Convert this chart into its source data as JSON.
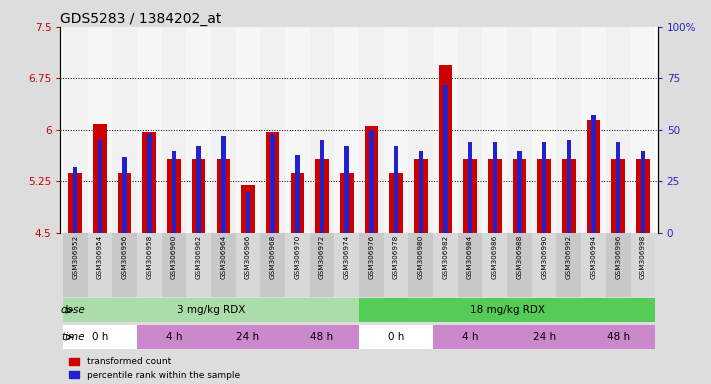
{
  "title": "GDS5283 / 1384202_at",
  "samples": [
    "GSM306952",
    "GSM306954",
    "GSM306956",
    "GSM306958",
    "GSM306960",
    "GSM306962",
    "GSM306964",
    "GSM306966",
    "GSM306968",
    "GSM306970",
    "GSM306972",
    "GSM306974",
    "GSM306976",
    "GSM306978",
    "GSM306980",
    "GSM306982",
    "GSM306984",
    "GSM306986",
    "GSM306988",
    "GSM306990",
    "GSM306992",
    "GSM306994",
    "GSM306996",
    "GSM306998"
  ],
  "red_values": [
    5.38,
    6.08,
    5.38,
    5.97,
    5.58,
    5.58,
    5.58,
    5.2,
    5.97,
    5.38,
    5.58,
    5.38,
    6.05,
    5.38,
    5.58,
    6.95,
    5.58,
    5.58,
    5.58,
    5.58,
    5.58,
    6.15,
    5.58,
    5.58
  ],
  "blue_values_pct": [
    32,
    45,
    37,
    48,
    40,
    42,
    47,
    20,
    48,
    38,
    45,
    42,
    50,
    42,
    40,
    72,
    44,
    44,
    40,
    44,
    45,
    57,
    44,
    40
  ],
  "ylim_left": [
    4.5,
    7.5
  ],
  "ylim_right": [
    0,
    100
  ],
  "yticks_left": [
    4.5,
    5.25,
    6.0,
    6.75,
    7.5
  ],
  "yticks_right": [
    0,
    25,
    50,
    75,
    100
  ],
  "ytick_labels_left": [
    "4.5",
    "5.25",
    "6",
    "6.75",
    "7.5"
  ],
  "ytick_labels_right": [
    "0",
    "25",
    "50",
    "75",
    "100%"
  ],
  "hlines": [
    5.25,
    6.0,
    6.75
  ],
  "bar_color_red": "#cc0000",
  "bar_color_blue": "#2222cc",
  "dose_labels": [
    {
      "label": "3 mg/kg RDX",
      "start": 0,
      "end": 12,
      "color": "#aaddaa"
    },
    {
      "label": "18 mg/kg RDX",
      "start": 12,
      "end": 24,
      "color": "#55cc55"
    }
  ],
  "time_labels": [
    {
      "label": "0 h",
      "start": 0,
      "end": 3,
      "color": "#ffffff"
    },
    {
      "label": "4 h",
      "start": 3,
      "end": 6,
      "color": "#cc88cc"
    },
    {
      "label": "24 h",
      "start": 6,
      "end": 9,
      "color": "#cc88cc"
    },
    {
      "label": "48 h",
      "start": 9,
      "end": 12,
      "color": "#cc88cc"
    },
    {
      "label": "0 h",
      "start": 12,
      "end": 15,
      "color": "#ffffff"
    },
    {
      "label": "4 h",
      "start": 15,
      "end": 18,
      "color": "#cc88cc"
    },
    {
      "label": "24 h",
      "start": 18,
      "end": 21,
      "color": "#cc88cc"
    },
    {
      "label": "48 h",
      "start": 21,
      "end": 24,
      "color": "#cc88cc"
    }
  ],
  "legend_items": [
    {
      "label": "transformed count",
      "color": "#cc0000"
    },
    {
      "label": "percentile rank within the sample",
      "color": "#2222cc"
    }
  ],
  "dose_row_label": "dose",
  "time_row_label": "time",
  "bg_color": "#dddddd",
  "plot_bg": "#ffffff",
  "title_fontsize": 10,
  "axis_color_left": "#cc0000",
  "axis_color_right": "#2222cc"
}
